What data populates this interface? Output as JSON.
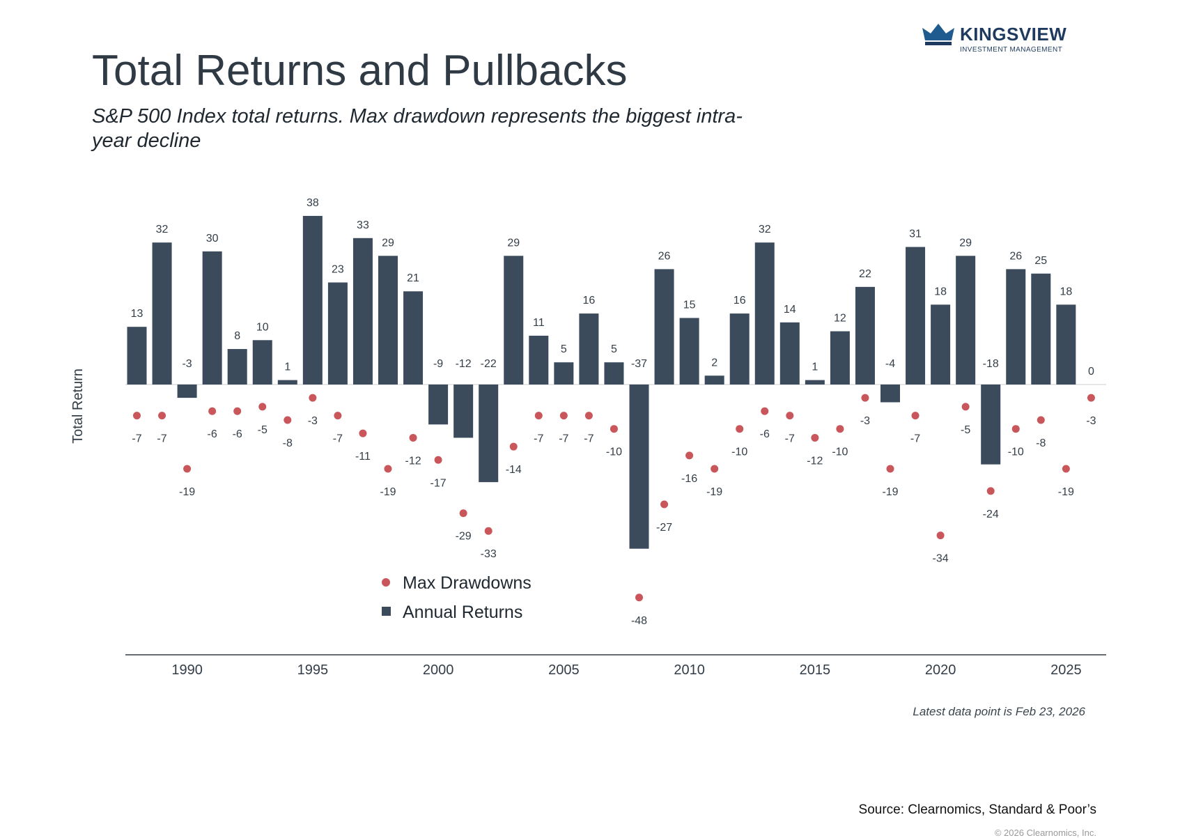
{
  "brand": {
    "name": "KINGSVIEW",
    "tagline": "INVESTMENT MANAGEMENT",
    "color": "#1e3a5f"
  },
  "header": {
    "title": "Total Returns and Pullbacks",
    "subtitle": "S&P 500 Index total returns. Max drawdown represents the biggest intra-year decline"
  },
  "footer": {
    "note": "Latest data point is Feb 23, 2026",
    "source": "Source: Clearnomics, Standard & Poor’s",
    "copyright": "© 2026 Clearnomics, Inc."
  },
  "chart_data": {
    "type": "bar",
    "title": "Total Returns and Pullbacks",
    "xlabel": "",
    "ylabel": "Total Return",
    "x": [
      1988,
      1989,
      1990,
      1991,
      1992,
      1993,
      1994,
      1995,
      1996,
      1997,
      1998,
      1999,
      2000,
      2001,
      2002,
      2003,
      2004,
      2005,
      2006,
      2007,
      2008,
      2009,
      2010,
      2011,
      2012,
      2013,
      2014,
      2015,
      2016,
      2017,
      2018,
      2019,
      2020,
      2021,
      2022,
      2023,
      2024,
      2025,
      2026
    ],
    "x_ticks": [
      "1990",
      "1995",
      "2000",
      "2005",
      "2010",
      "2015",
      "2020",
      "2025"
    ],
    "ylim": [
      -48,
      38
    ],
    "legend": "bottom-left",
    "series": [
      {
        "name": "Annual Returns",
        "kind": "bar",
        "color": "#3b4b5c",
        "values": [
          13,
          32,
          -3,
          30,
          8,
          10,
          1,
          38,
          23,
          33,
          29,
          21,
          -9,
          -12,
          -22,
          29,
          11,
          5,
          16,
          5,
          -37,
          26,
          15,
          2,
          16,
          32,
          14,
          1,
          12,
          22,
          -4,
          31,
          18,
          29,
          -18,
          26,
          25,
          18,
          0
        ]
      },
      {
        "name": "Max Drawdowns",
        "kind": "scatter",
        "color": "#c9565a",
        "values": [
          -7,
          -7,
          -19,
          -6,
          -6,
          -5,
          -8,
          -3,
          -7,
          -11,
          -19,
          -12,
          -17,
          -29,
          -33,
          -14,
          -7,
          -7,
          -7,
          -10,
          -48,
          -27,
          -16,
          -19,
          -10,
          -6,
          -7,
          -12,
          -10,
          -3,
          -19,
          -7,
          -34,
          -5,
          -24,
          -10,
          -8,
          -19,
          -3
        ]
      }
    ]
  }
}
